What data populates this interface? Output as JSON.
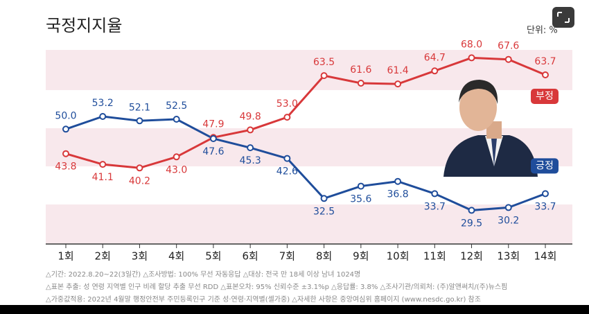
{
  "chart_data": {
    "type": "line",
    "title": "국정지지율",
    "unit": "단위: %",
    "categories": [
      "1회",
      "2회",
      "3회",
      "4회",
      "5회",
      "6회",
      "7회",
      "8회",
      "9회",
      "10회",
      "11회",
      "12회",
      "13회",
      "14회"
    ],
    "series": [
      {
        "name": "부정",
        "color": "#d8383a",
        "values": [
          43.8,
          41.1,
          40.2,
          43.0,
          47.9,
          49.8,
          53.0,
          63.5,
          61.6,
          61.4,
          64.7,
          68.0,
          67.6,
          63.7
        ],
        "value_labels": [
          "43.8",
          "41.1",
          "40.2",
          "43.0",
          "47.9",
          "49.8",
          "53.0",
          "63.5",
          "61.6",
          "61.4",
          "64.7",
          "68.0",
          "67.6",
          "63.7"
        ]
      },
      {
        "name": "긍정",
        "color": "#1f4d9b",
        "values": [
          50.0,
          53.2,
          52.1,
          52.5,
          47.6,
          45.3,
          42.6,
          32.5,
          35.6,
          36.8,
          33.7,
          29.5,
          30.2,
          33.7
        ],
        "value_labels": [
          "50.0",
          "53.2",
          "52.1",
          "52.5",
          "47.6",
          "45.3",
          "42.6",
          "32.5",
          "35.6",
          "36.8",
          "33.7",
          "29.5",
          "30.2",
          "33.7"
        ]
      }
    ],
    "ylim": [
      21,
      70
    ],
    "notes": [
      "△기간: 2022.8.20~22(3일간) △조사방법: 100% 무선 자동응답 △대상: 전국 만 18세 이상 남녀 1024명",
      "△표본 추출: 성 연령 지역별 인구 비례 할당 추출 무선 RDD △표본오차: 95% 신뢰수준 ±3.1%p △응답률: 3.8% △조사기관/의뢰처: (주)알앤써치/(주)뉴스핌",
      "△가중값적용: 2022년 4월말 행정안전부 주민등록인구 기준 성·연령·지역별(셀가중) △자세한 사항은 중앙여심위 홈페이지 (www.nesdc.go.kr) 참조"
    ]
  }
}
